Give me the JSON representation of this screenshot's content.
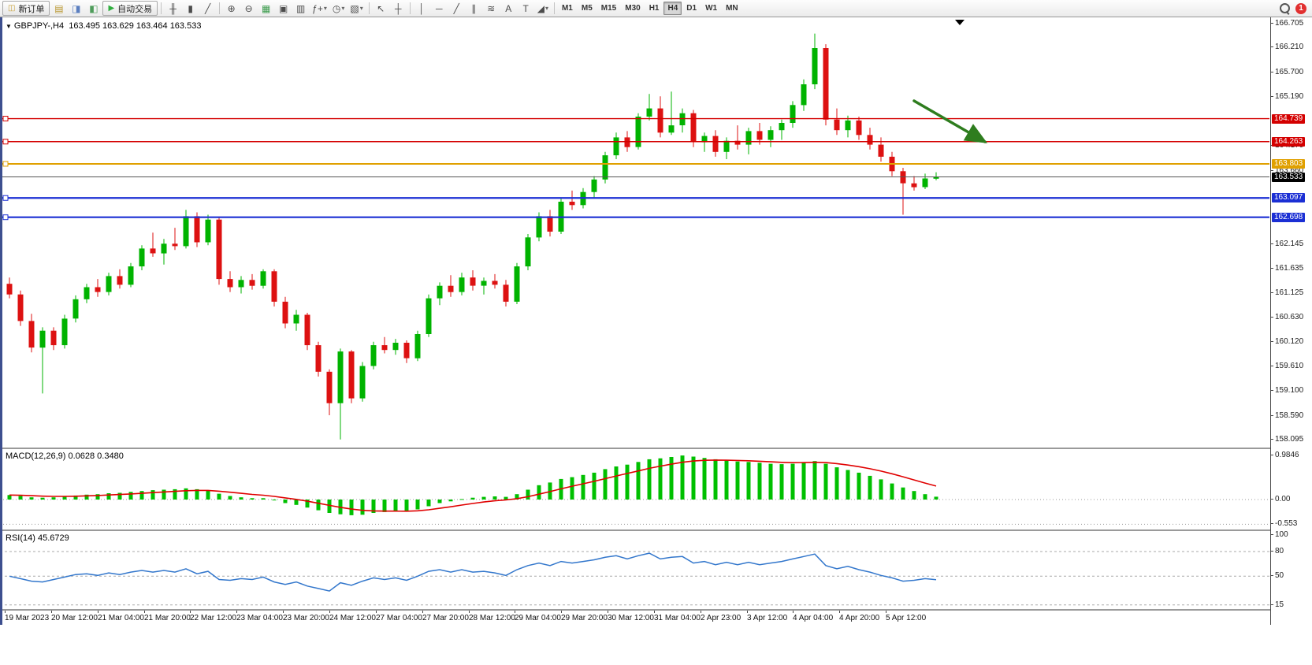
{
  "toolbar": {
    "items": [
      {
        "name": "new-order-button",
        "kind": "button",
        "glyph": "◫",
        "glyph_color": "#c8a23c",
        "label": "新订单"
      },
      {
        "name": "market-watch-icon",
        "kind": "icon",
        "glyph": "▤",
        "color": "#b8962e"
      },
      {
        "name": "navigator-icon",
        "kind": "icon",
        "glyph": "◨",
        "color": "#5b7fc0"
      },
      {
        "name": "terminal-icon",
        "kind": "icon",
        "glyph": "◧",
        "color": "#4f9d5b"
      },
      {
        "name": "auto-trading-button",
        "kind": "button",
        "glyph": "▶",
        "glyph_color": "#2fae3e",
        "label": "自动交易"
      },
      {
        "name": "toolbar-separator",
        "kind": "sep"
      },
      {
        "name": "bar-chart-icon",
        "kind": "icon",
        "glyph": "╫"
      },
      {
        "name": "candlestick-chart-icon",
        "kind": "icon",
        "glyph": "▮"
      },
      {
        "name": "line-chart-icon",
        "kind": "icon",
        "glyph": "╱"
      },
      {
        "name": "toolbar-separator",
        "kind": "sep"
      },
      {
        "name": "zoom-in-icon",
        "kind": "icon",
        "glyph": "⊕"
      },
      {
        "name": "zoom-out-icon",
        "kind": "icon",
        "glyph": "⊖"
      },
      {
        "name": "tile-windows-icon",
        "kind": "icon",
        "glyph": "▦",
        "color": "#3f9d4f"
      },
      {
        "name": "cascade-windows-icon",
        "kind": "icon",
        "glyph": "▣"
      },
      {
        "name": "arrange-windows-icon",
        "kind": "icon",
        "glyph": "▥"
      },
      {
        "name": "indicators-dropdown",
        "kind": "dropdown",
        "glyph": "ƒ+"
      },
      {
        "name": "periods-dropdown",
        "kind": "dropdown",
        "glyph": "◷"
      },
      {
        "name": "templates-dropdown",
        "kind": "dropdown",
        "glyph": "▧"
      },
      {
        "name": "toolbar-separator",
        "kind": "sep"
      },
      {
        "name": "cursor-icon",
        "kind": "icon",
        "glyph": "↖"
      },
      {
        "name": "crosshair-icon",
        "kind": "icon",
        "glyph": "┼"
      },
      {
        "name": "toolbar-separator",
        "kind": "sep"
      },
      {
        "name": "vertical-line-icon",
        "kind": "icon",
        "glyph": "│"
      },
      {
        "name": "horizontal-line-icon",
        "kind": "icon",
        "glyph": "─"
      },
      {
        "name": "trendline-icon",
        "kind": "icon",
        "glyph": "╱"
      },
      {
        "name": "equidistant-channel-icon",
        "kind": "icon",
        "glyph": "∥"
      },
      {
        "name": "fibonacci-icon",
        "kind": "icon",
        "glyph": "≋"
      },
      {
        "name": "text-icon",
        "kind": "icon",
        "glyph": "A"
      },
      {
        "name": "label-icon",
        "kind": "icon",
        "glyph": "T"
      },
      {
        "name": "shapes-dropdown",
        "kind": "dropdown",
        "glyph": "◢"
      },
      {
        "name": "toolbar-separator",
        "kind": "sep"
      }
    ],
    "timeframes": [
      "M1",
      "M5",
      "M15",
      "M30",
      "H1",
      "H4",
      "D1",
      "W1",
      "MN"
    ],
    "active_timeframe": "H4",
    "badge_count": "1"
  },
  "chart": {
    "marker": "▼",
    "title": "GBPJPY-,H4",
    "ohlc": "163.495 163.629 163.464 163.533"
  },
  "chart_data": [
    {
      "type": "candlestick",
      "symbol": "GBPJPY-",
      "timeframe": "H4",
      "open": 163.495,
      "high": 163.629,
      "low": 163.464,
      "close": 163.533,
      "colors": {
        "up": "#00b300",
        "down": "#dd1111"
      },
      "candles": [
        [
          161.32,
          161.45,
          161.02,
          161.1
        ],
        [
          161.1,
          161.18,
          160.45,
          160.55
        ],
        [
          160.55,
          160.7,
          159.9,
          160.0
        ],
        [
          160.0,
          160.42,
          159.05,
          160.35
        ],
        [
          160.35,
          160.42,
          159.95,
          160.05
        ],
        [
          160.05,
          160.68,
          159.98,
          160.6
        ],
        [
          160.6,
          161.08,
          160.52,
          161.0
        ],
        [
          161.0,
          161.32,
          160.92,
          161.25
        ],
        [
          161.25,
          161.42,
          161.05,
          161.15
        ],
        [
          161.15,
          161.55,
          161.08,
          161.48
        ],
        [
          161.48,
          161.62,
          161.22,
          161.3
        ],
        [
          161.3,
          161.75,
          161.25,
          161.68
        ],
        [
          161.68,
          162.12,
          161.6,
          162.05
        ],
        [
          162.05,
          162.38,
          161.88,
          161.95
        ],
        [
          161.95,
          162.25,
          161.72,
          162.15
        ],
        [
          162.15,
          162.48,
          162.02,
          162.1
        ],
        [
          162.1,
          162.85,
          162.05,
          162.72
        ],
        [
          162.72,
          162.8,
          162.08,
          162.18
        ],
        [
          162.18,
          162.75,
          162.12,
          162.65
        ],
        [
          162.65,
          162.7,
          161.3,
          161.42
        ],
        [
          161.42,
          161.58,
          161.15,
          161.25
        ],
        [
          161.25,
          161.48,
          161.12,
          161.4
        ],
        [
          161.4,
          161.52,
          161.2,
          161.28
        ],
        [
          161.28,
          161.62,
          161.22,
          161.58
        ],
        [
          161.58,
          161.62,
          160.85,
          160.95
        ],
        [
          160.95,
          161.05,
          160.4,
          160.5
        ],
        [
          160.5,
          160.78,
          160.35,
          160.68
        ],
        [
          160.68,
          160.72,
          159.95,
          160.05
        ],
        [
          160.05,
          160.12,
          159.4,
          159.5
        ],
        [
          159.5,
          159.55,
          158.6,
          158.85
        ],
        [
          158.85,
          159.98,
          158.1,
          159.92
        ],
        [
          159.92,
          159.95,
          158.85,
          158.95
        ],
        [
          158.95,
          159.7,
          158.88,
          159.62
        ],
        [
          159.62,
          160.12,
          159.55,
          160.05
        ],
        [
          160.05,
          160.22,
          159.88,
          159.95
        ],
        [
          159.95,
          160.18,
          159.85,
          160.1
        ],
        [
          160.1,
          160.15,
          159.68,
          159.78
        ],
        [
          159.78,
          160.35,
          159.72,
          160.28
        ],
        [
          160.28,
          161.1,
          160.22,
          161.02
        ],
        [
          161.02,
          161.35,
          160.88,
          161.28
        ],
        [
          161.28,
          161.5,
          161.05,
          161.15
        ],
        [
          161.15,
          161.55,
          161.08,
          161.45
        ],
        [
          161.45,
          161.6,
          161.18,
          161.28
        ],
        [
          161.28,
          161.45,
          161.1,
          161.38
        ],
        [
          161.38,
          161.52,
          161.22,
          161.3
        ],
        [
          161.3,
          161.4,
          160.85,
          160.95
        ],
        [
          160.95,
          161.75,
          160.9,
          161.68
        ],
        [
          161.68,
          162.35,
          161.6,
          162.28
        ],
        [
          162.28,
          162.8,
          162.2,
          162.72
        ],
        [
          162.72,
          162.85,
          162.3,
          162.4
        ],
        [
          162.4,
          163.1,
          162.35,
          163.02
        ],
        [
          163.02,
          163.25,
          162.85,
          162.95
        ],
        [
          162.95,
          163.3,
          162.88,
          163.22
        ],
        [
          163.22,
          163.55,
          163.1,
          163.48
        ],
        [
          163.48,
          164.05,
          163.4,
          163.98
        ],
        [
          163.98,
          164.45,
          163.9,
          164.35
        ],
        [
          164.35,
          164.48,
          164.05,
          164.15
        ],
        [
          164.15,
          164.85,
          164.1,
          164.78
        ],
        [
          164.78,
          165.25,
          164.7,
          164.95
        ],
        [
          164.95,
          165.2,
          164.35,
          164.45
        ],
        [
          164.45,
          165.3,
          164.4,
          164.6
        ],
        [
          164.6,
          164.95,
          164.45,
          164.85
        ],
        [
          164.85,
          164.92,
          164.15,
          164.25
        ],
        [
          164.25,
          164.45,
          164.05,
          164.38
        ],
        [
          164.38,
          164.5,
          163.95,
          164.05
        ],
        [
          164.05,
          164.35,
          163.9,
          164.28
        ],
        [
          164.28,
          164.6,
          164.1,
          164.2
        ],
        [
          164.2,
          164.55,
          164.0,
          164.48
        ],
        [
          164.48,
          164.65,
          164.2,
          164.3
        ],
        [
          164.3,
          164.58,
          164.15,
          164.5
        ],
        [
          164.5,
          164.72,
          164.3,
          164.65
        ],
        [
          164.65,
          165.1,
          164.55,
          165.02
        ],
        [
          165.02,
          165.55,
          164.9,
          165.45
        ],
        [
          165.45,
          166.5,
          165.35,
          166.2
        ],
        [
          166.2,
          166.28,
          164.6,
          164.72
        ],
        [
          164.72,
          164.95,
          164.4,
          164.5
        ],
        [
          164.5,
          164.8,
          164.35,
          164.7
        ],
        [
          164.7,
          164.78,
          164.3,
          164.4
        ],
        [
          164.4,
          164.55,
          164.1,
          164.2
        ],
        [
          164.2,
          164.35,
          163.85,
          163.95
        ],
        [
          163.95,
          164.05,
          163.55,
          163.65
        ],
        [
          163.65,
          163.72,
          162.75,
          163.4
        ],
        [
          163.4,
          163.55,
          163.25,
          163.32
        ],
        [
          163.32,
          163.6,
          163.28,
          163.5
        ],
        [
          163.495,
          163.629,
          163.464,
          163.533
        ]
      ],
      "hlines": [
        {
          "price": 164.739,
          "label": "164.739",
          "color": "#d40000",
          "thickness": 1.4
        },
        {
          "price": 164.263,
          "label": "164.263",
          "color": "#d40000",
          "thickness": 1.4
        },
        {
          "price": 163.803,
          "label": "163.803",
          "color": "#e0a000",
          "thickness": 2
        },
        {
          "price": 163.097,
          "label": "163.097",
          "color": "#1b2fd4",
          "thickness": 2.2
        },
        {
          "price": 162.698,
          "label": "162.698",
          "color": "#1b2fd4",
          "thickness": 2.2
        }
      ],
      "current_price": {
        "value": 163.533,
        "label": "163.533",
        "bg": "#000000"
      },
      "y_axis_labels": [
        "166.705",
        "166.210",
        "165.700",
        "165.190",
        "164.170",
        "163.660",
        "162.145",
        "161.635",
        "161.125",
        "160.630",
        "160.120",
        "159.610",
        "159.100",
        "158.590",
        "158.095"
      ],
      "x_labels": [
        "19 Mar 2023",
        "20 Mar 12:00",
        "21 Mar 04:00",
        "21 Mar 20:00",
        "22 Mar 12:00",
        "23 Mar 04:00",
        "23 Mar 20:00",
        "24 Mar 12:00",
        "27 Mar 04:00",
        "27 Mar 20:00",
        "28 Mar 12:00",
        "29 Mar 04:00",
        "29 Mar 20:00",
        "30 Mar 12:00",
        "31 Mar 04:00",
        "2 Apr 23:00",
        "3 Apr 12:00",
        "4 Apr 04:00",
        "4 Apr 20:00",
        "5 Apr 12:00"
      ],
      "annotation_arrow": {
        "from": [
          1160,
          106
        ],
        "to": [
          1250,
          158
        ],
        "color": "#2e7d1e"
      }
    },
    {
      "type": "bar",
      "name": "MACD",
      "params": "(12,26,9)",
      "values_display": "0.0628 0.3480",
      "label_display": "MACD(12,26,9) 0.0628 0.3480",
      "histogram": [
        0.1,
        0.08,
        0.05,
        0.04,
        0.05,
        0.07,
        0.09,
        0.11,
        0.12,
        0.14,
        0.15,
        0.17,
        0.19,
        0.21,
        0.22,
        0.23,
        0.25,
        0.23,
        0.2,
        0.13,
        0.08,
        0.05,
        0.03,
        0.03,
        -0.02,
        -0.08,
        -0.12,
        -0.18,
        -0.24,
        -0.3,
        -0.33,
        -0.35,
        -0.34,
        -0.3,
        -0.28,
        -0.26,
        -0.26,
        -0.22,
        -0.15,
        -0.08,
        -0.04,
        0.01,
        0.04,
        0.06,
        0.07,
        0.06,
        0.12,
        0.22,
        0.32,
        0.38,
        0.46,
        0.5,
        0.55,
        0.6,
        0.68,
        0.74,
        0.78,
        0.84,
        0.9,
        0.92,
        0.95,
        0.984,
        0.96,
        0.93,
        0.9,
        0.87,
        0.85,
        0.84,
        0.82,
        0.8,
        0.79,
        0.8,
        0.83,
        0.86,
        0.8,
        0.72,
        0.66,
        0.6,
        0.53,
        0.45,
        0.36,
        0.27,
        0.19,
        0.12,
        0.063
      ],
      "levels": [
        0,
        -0.553
      ],
      "axis_labels": [
        "0.9846",
        "0.00",
        "-0.553"
      ],
      "colors": {
        "histogram": "#00c000",
        "signal": "#e00000"
      }
    },
    {
      "type": "line",
      "name": "RSI",
      "params": "(14)",
      "value_display": "45.6729",
      "label_display": "RSI(14) 45.6729",
      "values": [
        50,
        47,
        44,
        43,
        46,
        49,
        52,
        53,
        51,
        54,
        52,
        55,
        57,
        55,
        57,
        55,
        59,
        53,
        56,
        46,
        45,
        47,
        46,
        49,
        43,
        40,
        43,
        38,
        35,
        32,
        42,
        39,
        44,
        48,
        46,
        48,
        45,
        50,
        56,
        58,
        55,
        58,
        55,
        56,
        54,
        51,
        58,
        63,
        66,
        63,
        68,
        66,
        68,
        70,
        73,
        75,
        71,
        75,
        78,
        71,
        73,
        74,
        66,
        68,
        64,
        67,
        64,
        67,
        64,
        66,
        68,
        71,
        74,
        77,
        63,
        59,
        62,
        58,
        55,
        51,
        48,
        44,
        45,
        47,
        45.67
      ],
      "levels": [
        80,
        50,
        15
      ],
      "axis_labels": [
        "100",
        "80",
        "50",
        "15"
      ],
      "color": "#3377cc"
    }
  ]
}
